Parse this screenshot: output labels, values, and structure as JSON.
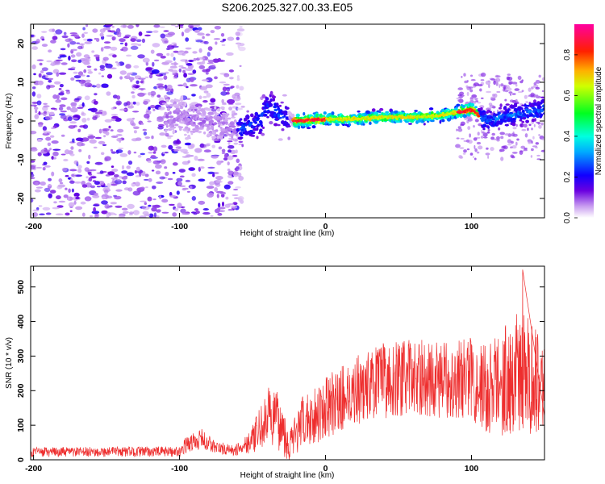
{
  "title": "S206.2025.327.00.33.E05",
  "colors": {
    "snr_line": "#ee2e2e",
    "background": "#ffffff",
    "axes": "#000000",
    "colormap": [
      "#ffffff",
      "#b48cf0",
      "#7a0ee0",
      "#1010ff",
      "#00d8ff",
      "#00ff40",
      "#fff000",
      "#ff7a00",
      "#ff0040",
      "#ff0090"
    ]
  },
  "chart_data": [
    {
      "type": "heatmap",
      "xlabel": "Height of straight line (km)",
      "ylabel": "Frequency (Hz)",
      "xlim": [
        -202,
        150
      ],
      "ylim": [
        -25,
        25
      ],
      "xticks": [
        -200,
        -100,
        0,
        100
      ],
      "yticks": [
        -20,
        -10,
        0,
        10,
        20
      ],
      "colorbar": {
        "label": "Normalized spectral amplitude",
        "range": [
          0,
          0.95
        ],
        "ticks": [
          "0.0",
          "0.2",
          "0.4",
          "0.6",
          "0.8"
        ]
      },
      "signal_track": [
        {
          "x": -100,
          "f": 1
        },
        {
          "x": -60,
          "f": -2
        },
        {
          "x": -55,
          "f": -2
        },
        {
          "x": -45,
          "f": 0
        },
        {
          "x": -38,
          "f": 4
        },
        {
          "x": -30,
          "f": 1
        },
        {
          "x": -20,
          "f": 0
        },
        {
          "x": 0,
          "f": 0.5
        },
        {
          "x": 20,
          "f": 0.5
        },
        {
          "x": 40,
          "f": 1
        },
        {
          "x": 60,
          "f": 1
        },
        {
          "x": 80,
          "f": 1.5
        },
        {
          "x": 100,
          "f": 3
        },
        {
          "x": 110,
          "f": 0
        },
        {
          "x": 120,
          "f": 1
        },
        {
          "x": 150,
          "f": 3
        }
      ],
      "peak_amplitude_regions": [
        {
          "x_range": [
            -22,
            0
          ],
          "level": 0.95
        },
        {
          "x_range": [
            0,
            90
          ],
          "level": 0.75
        },
        {
          "x_range": [
            90,
            105
          ],
          "level": 0.95
        },
        {
          "x_range": [
            105,
            150
          ],
          "level": 0.35
        },
        {
          "x_range": [
            -60,
            -25
          ],
          "level": 0.3
        },
        {
          "x_range": [
            -202,
            -60
          ],
          "level": 0.1
        }
      ]
    },
    {
      "type": "line",
      "xlabel": "Height of straight line (km)",
      "ylabel": "SNR (10 * v/v)",
      "xlim": [
        -202,
        150
      ],
      "ylim": [
        0,
        560
      ],
      "xticks": [
        -200,
        -100,
        0,
        100
      ],
      "yticks": [
        0,
        100,
        200,
        300,
        400,
        500
      ],
      "series": [
        {
          "envelope": [
            {
              "x": -202,
              "mean": 22,
              "spread": 14
            },
            {
              "x": -100,
              "mean": 24,
              "spread": 15
            },
            {
              "x": -95,
              "mean": 45,
              "spread": 25
            },
            {
              "x": -85,
              "mean": 60,
              "spread": 30
            },
            {
              "x": -75,
              "mean": 35,
              "spread": 20
            },
            {
              "x": -62,
              "mean": 26,
              "spread": 15
            },
            {
              "x": -50,
              "mean": 60,
              "spread": 40
            },
            {
              "x": -38,
              "mean": 130,
              "spread": 90
            },
            {
              "x": -30,
              "mean": 100,
              "spread": 80
            },
            {
              "x": -25,
              "mean": 40,
              "spread": 50
            },
            {
              "x": -15,
              "mean": 110,
              "spread": 80
            },
            {
              "x": 0,
              "mean": 150,
              "spread": 90
            },
            {
              "x": 20,
              "mean": 200,
              "spread": 100
            },
            {
              "x": 40,
              "mean": 230,
              "spread": 110
            },
            {
              "x": 60,
              "mean": 240,
              "spread": 110
            },
            {
              "x": 80,
              "mean": 230,
              "spread": 110
            },
            {
              "x": 100,
              "mean": 240,
              "spread": 120
            },
            {
              "x": 110,
              "mean": 200,
              "spread": 140
            },
            {
              "x": 130,
              "mean": 250,
              "spread": 180
            },
            {
              "x": 150,
              "mean": 240,
              "spread": 160
            }
          ],
          "peak": {
            "x": 135,
            "y": 550
          }
        }
      ]
    }
  ]
}
